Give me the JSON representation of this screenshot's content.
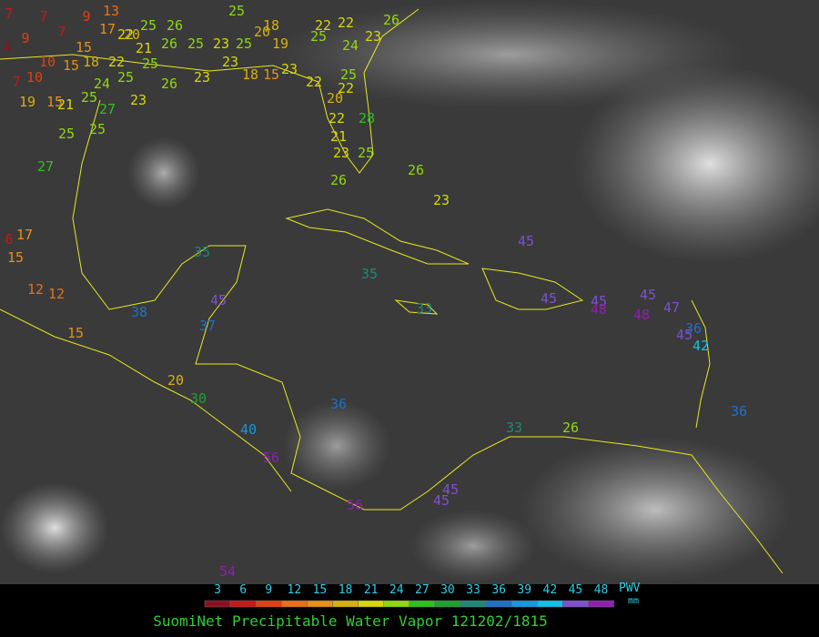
{
  "caption": "SuomiNet Precipitable Water Vapor 121202/1815",
  "legend": {
    "unit": "PWV",
    "unit_sub": "mm",
    "ticks": [
      3,
      6,
      9,
      12,
      15,
      18,
      21,
      24,
      27,
      30,
      33,
      36,
      39,
      42,
      45,
      48
    ],
    "colors": [
      "#8c1020",
      "#c81818",
      "#e04010",
      "#e87018",
      "#e89018",
      "#d8b010",
      "#d8d808",
      "#90d810",
      "#30c020",
      "#20a030",
      "#208878",
      "#2070c8",
      "#1898e0",
      "#10c0e8",
      "#8050d0",
      "#9020b0"
    ]
  },
  "stations": [
    7,
    9,
    7,
    4,
    7,
    15,
    9,
    13,
    17,
    22,
    20,
    25,
    26,
    25,
    18,
    22,
    22,
    26,
    10,
    15,
    18,
    22,
    25,
    21,
    26,
    25,
    23,
    25,
    20,
    19,
    25,
    24,
    23,
    7,
    10,
    15,
    21,
    25,
    24,
    25,
    26,
    23,
    23,
    18,
    15,
    23,
    22,
    22,
    25,
    27,
    23,
    19,
    25,
    25,
    27,
    20,
    22,
    21,
    23,
    25,
    28,
    26,
    26,
    23,
    6,
    17,
    15,
    12,
    12,
    15,
    35,
    35,
    45,
    38,
    37,
    45,
    20,
    30,
    36,
    40,
    56,
    33,
    45,
    45,
    48,
    45,
    48,
    47,
    36,
    42,
    36,
    33,
    26,
    56,
    45,
    54,
    45,
    45
  ]
}
